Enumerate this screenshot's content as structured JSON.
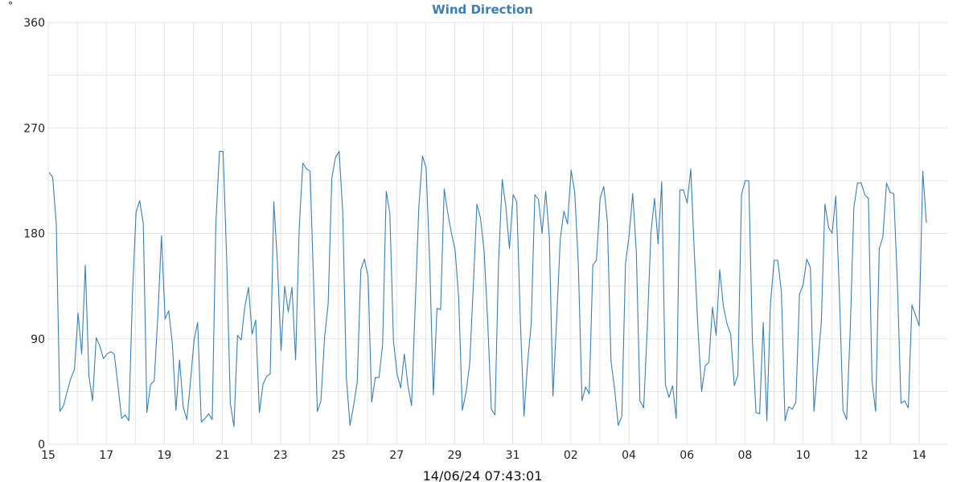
{
  "chart_data": {
    "type": "line",
    "title": "Wind Direction",
    "y_unit": "°",
    "timestamp": "14/06/24 07:43:01",
    "xlabel": "",
    "ylabel": "",
    "ylim": [
      0,
      360
    ],
    "y_ticks": [
      0,
      90,
      180,
      270,
      360
    ],
    "x_tick_labels": [
      "15",
      "17",
      "19",
      "21",
      "23",
      "25",
      "27",
      "29",
      "31",
      "02",
      "04",
      "06",
      "08",
      "10",
      "12",
      "14"
    ],
    "grid": true,
    "colors": {
      "line": "#3a7fb5",
      "title": "#3a7fb5",
      "grid": "#e3e3e3"
    },
    "series": [
      {
        "values": [
          232,
          228,
          188,
          28,
          33,
          45,
          56,
          64,
          112,
          77,
          153,
          58,
          37,
          91,
          84,
          73,
          77,
          79,
          77,
          50,
          22,
          25,
          20,
          128,
          198,
          208,
          188,
          27,
          51,
          54,
          108,
          178,
          107,
          114,
          86,
          29,
          72,
          32,
          21,
          53,
          89,
          104,
          19,
          22,
          26,
          21,
          188,
          250,
          250,
          158,
          35,
          15,
          93,
          89,
          117,
          134,
          94,
          106,
          27,
          51,
          58,
          60,
          207,
          155,
          80,
          135,
          113,
          134,
          72,
          185,
          240,
          235,
          233,
          135,
          28,
          37,
          91,
          120,
          227,
          245,
          250,
          198,
          57,
          16,
          33,
          53,
          149,
          158,
          143,
          36,
          57,
          57,
          85,
          216,
          197,
          88,
          60,
          48,
          77,
          50,
          33,
          118,
          202,
          246,
          236,
          154,
          42,
          116,
          115,
          218,
          197,
          180,
          166,
          125,
          29,
          44,
          68,
          134,
          205,
          193,
          165,
          104,
          30,
          25,
          156,
          226,
          203,
          167,
          213,
          207,
          105,
          24,
          70,
          103,
          213,
          209,
          180,
          216,
          177,
          41,
          106,
          175,
          199,
          188,
          234,
          215,
          153,
          37,
          49,
          43,
          153,
          157,
          210,
          220,
          190,
          71,
          47,
          16,
          24,
          154,
          178,
          214,
          164,
          37,
          31,
          99,
          180,
          210,
          171,
          224,
          51,
          40,
          50,
          22,
          217,
          217,
          206,
          235,
          162,
          98,
          45,
          67,
          70,
          117,
          93,
          149,
          118,
          103,
          94,
          50,
          59,
          213,
          225,
          225,
          89,
          27,
          26,
          104,
          20,
          120,
          157,
          157,
          130,
          20,
          32,
          30,
          36,
          128,
          136,
          158,
          151,
          28,
          67,
          104,
          205,
          185,
          180,
          212,
          129,
          29,
          21,
          98,
          202,
          223,
          223,
          213,
          210,
          54,
          28,
          167,
          177,
          223,
          215,
          214,
          138,
          35,
          37,
          31,
          119,
          110,
          101,
          233,
          189
        ]
      }
    ]
  }
}
